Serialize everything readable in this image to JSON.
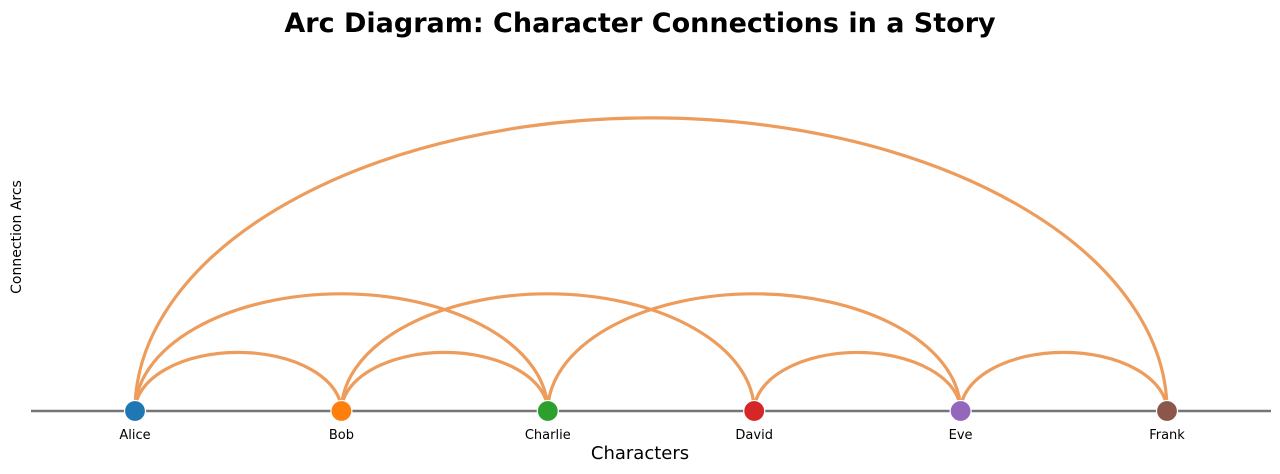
{
  "chart_data": {
    "type": "arc-diagram",
    "title": "Arc Diagram: Character Connections in a Story",
    "xlabel": "Characters",
    "ylabel": "Connection Arcs",
    "nodes": [
      {
        "name": "Alice",
        "color": "#1f77b4"
      },
      {
        "name": "Bob",
        "color": "#ff7f0e"
      },
      {
        "name": "Charlie",
        "color": "#2ca02c"
      },
      {
        "name": "David",
        "color": "#d62728"
      },
      {
        "name": "Eve",
        "color": "#9467bd"
      },
      {
        "name": "Frank",
        "color": "#8c564b"
      }
    ],
    "edges": [
      [
        "Alice",
        "Bob"
      ],
      [
        "Bob",
        "Charlie"
      ],
      [
        "Alice",
        "Charlie"
      ],
      [
        "Bob",
        "David"
      ],
      [
        "Charlie",
        "Eve"
      ],
      [
        "David",
        "Eve"
      ],
      [
        "Eve",
        "Frank"
      ],
      [
        "Alice",
        "Frank"
      ]
    ],
    "style": {
      "arc_color": "#ed9c5c",
      "axis_line_color": "#757575",
      "node_edge_color": "#ffffff",
      "text_color": "#000000",
      "background": "#ffffff"
    },
    "layout_hints": {
      "grid": "off",
      "legend": "none",
      "arc_side": "above-baseline",
      "node_order_left_to_right": [
        "Alice",
        "Bob",
        "Charlie",
        "David",
        "Eve",
        "Frank"
      ]
    }
  }
}
